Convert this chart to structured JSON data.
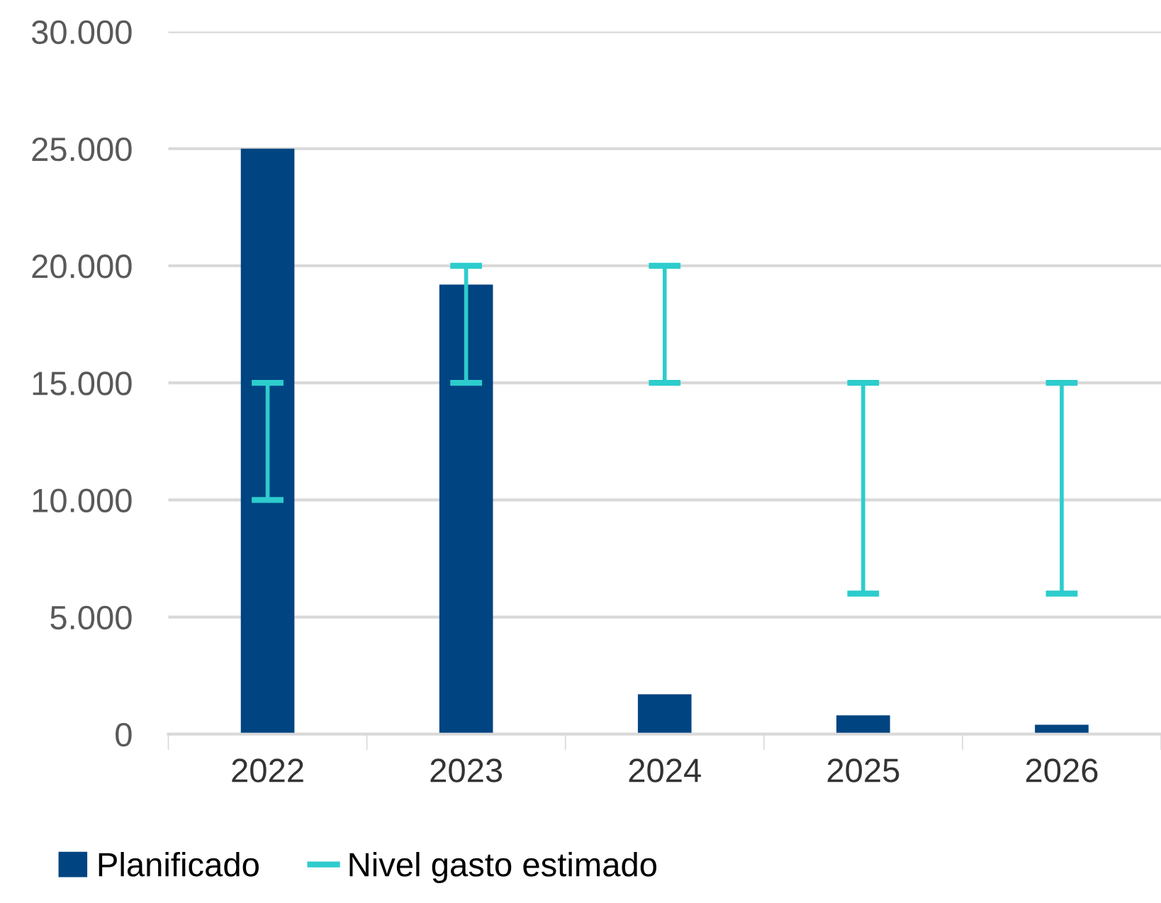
{
  "chart_data": {
    "type": "bar",
    "categories": [
      "2022",
      "2023",
      "2024",
      "2025",
      "2026"
    ],
    "series": [
      {
        "name": "Planificado",
        "color": "#004481",
        "values": [
          25000,
          19200,
          1700,
          800,
          400
        ]
      },
      {
        "name": "Nivel gasto estimado",
        "color": "#2dcccd",
        "type": "bar",
        "base": [
          10000,
          15000,
          15000,
          6000,
          6000
        ],
        "values": [
          5000,
          5000,
          5000,
          9000,
          9000
        ]
      }
    ],
    "ylim": [
      0,
      30000
    ],
    "yticks": [
      {
        "value": 0,
        "label": "0"
      },
      {
        "value": 5000,
        "label": "5.000"
      },
      {
        "value": 10000,
        "label": "10.000"
      },
      {
        "value": 15000,
        "label": "15.000"
      },
      {
        "value": 20000,
        "label": "20.000"
      },
      {
        "value": 25000,
        "label": "25.000"
      },
      {
        "value": 30000,
        "label": "30.000"
      }
    ],
    "grid": "y",
    "legend": "bottom left"
  }
}
